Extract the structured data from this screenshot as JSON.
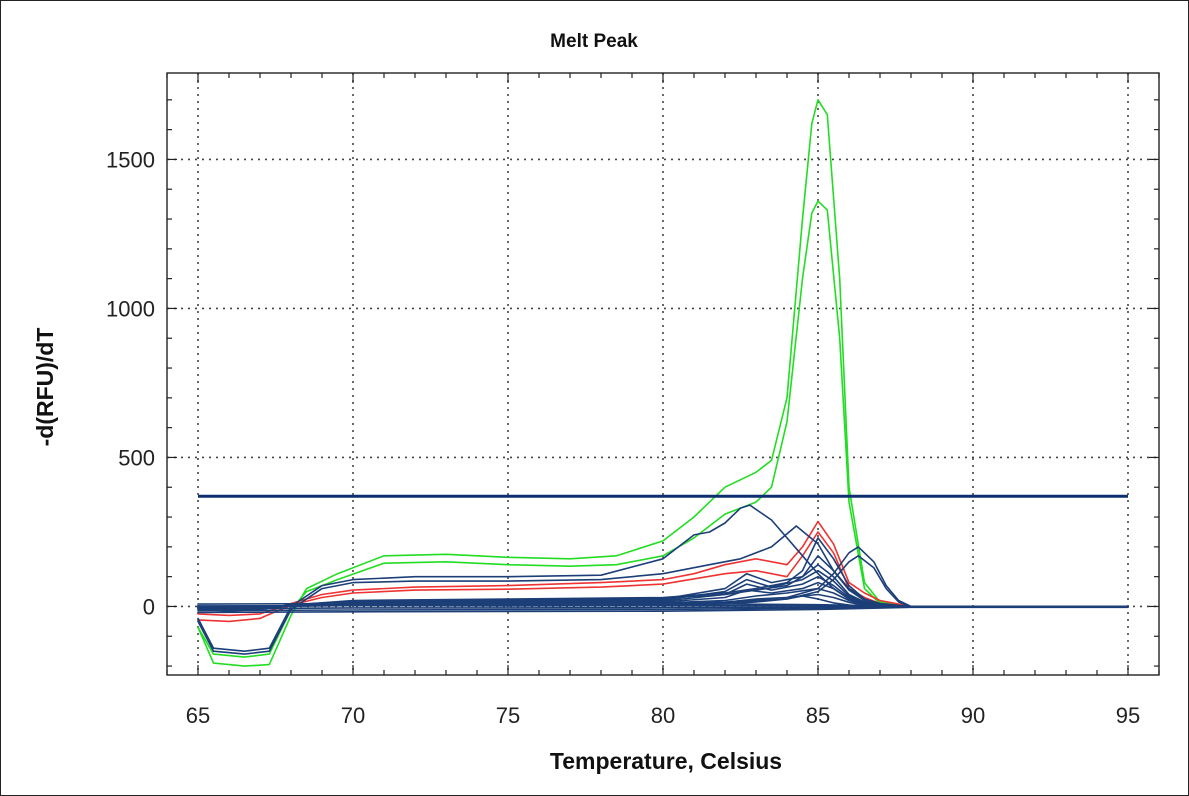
{
  "chart_data": {
    "type": "line",
    "title": "Melt Peak",
    "xlabel": "Temperature, Celsius",
    "ylabel": "-d(RFU)/dT",
    "xlim": [
      64,
      96
    ],
    "ylim": [
      -230,
      1790
    ],
    "x_ticks": [
      "65",
      "70",
      "75",
      "80",
      "85",
      "90",
      "95"
    ],
    "y_ticks": [
      "0",
      "500",
      "1000",
      "1500"
    ],
    "x_tick_values": [
      65,
      70,
      75,
      80,
      85,
      90,
      95
    ],
    "y_tick_values": [
      0,
      500,
      1000,
      1500
    ],
    "grid": true,
    "colors": {
      "green": "#22dd22",
      "red": "#ee3333",
      "blue": "#1c3f78",
      "threshold": "#0d2f70"
    },
    "threshold": 370,
    "series": [
      {
        "color": "green",
        "x": [
          65,
          65.5,
          66.5,
          67.3,
          68,
          68.5,
          69.5,
          71,
          73,
          75,
          77,
          78.5,
          80,
          81,
          82,
          83,
          83.5,
          84,
          84.5,
          84.8,
          85,
          85.3,
          85.7,
          86,
          86.5,
          87,
          88,
          90,
          95
        ],
        "y": [
          -70,
          -190,
          -200,
          -195,
          -30,
          60,
          110,
          170,
          175,
          165,
          160,
          170,
          220,
          300,
          400,
          450,
          490,
          700,
          1300,
          1620,
          1700,
          1650,
          1100,
          400,
          80,
          15,
          0,
          0,
          0
        ]
      },
      {
        "color": "green",
        "x": [
          65,
          65.5,
          66.5,
          67.3,
          68,
          68.5,
          69.5,
          71,
          73,
          75,
          77,
          78.5,
          80,
          81,
          82,
          83,
          83.5,
          84,
          84.5,
          84.8,
          85,
          85.3,
          85.7,
          86,
          86.5,
          87,
          88,
          90,
          95
        ],
        "y": [
          -70,
          -160,
          -170,
          -160,
          -10,
          50,
          90,
          145,
          150,
          140,
          135,
          140,
          170,
          230,
          310,
          350,
          400,
          620,
          1100,
          1320,
          1360,
          1330,
          900,
          350,
          60,
          10,
          0,
          0,
          0
        ]
      },
      {
        "color": "red",
        "x": [
          65,
          66,
          67,
          68,
          69,
          70,
          72,
          75,
          78,
          80,
          81,
          82,
          83,
          84,
          84.5,
          85,
          85.5,
          86,
          86.5,
          87,
          88,
          90,
          95
        ],
        "y": [
          -25,
          -30,
          -25,
          10,
          40,
          55,
          65,
          70,
          80,
          90,
          110,
          140,
          160,
          140,
          200,
          285,
          210,
          80,
          45,
          20,
          0,
          0,
          0
        ]
      },
      {
        "color": "red",
        "x": [
          65,
          66,
          67,
          68,
          69,
          70,
          72,
          75,
          78,
          80,
          82,
          83,
          84,
          84.5,
          85,
          85.5,
          86,
          86.5,
          87,
          88,
          90,
          95
        ],
        "y": [
          -45,
          -50,
          -40,
          5,
          30,
          45,
          55,
          58,
          65,
          75,
          110,
          120,
          100,
          170,
          250,
          180,
          60,
          30,
          10,
          0,
          0,
          0
        ]
      },
      {
        "color": "blue",
        "x": [
          65,
          65.5,
          66.5,
          67.3,
          68,
          69,
          70,
          72,
          75,
          78,
          80,
          81,
          81.5,
          82,
          82.5,
          82.8,
          83.5,
          84,
          84.5,
          85,
          85.5,
          86,
          87,
          88,
          90,
          95
        ],
        "y": [
          -40,
          -140,
          -150,
          -140,
          0,
          70,
          90,
          100,
          100,
          105,
          160,
          240,
          250,
          280,
          330,
          340,
          290,
          230,
          170,
          110,
          60,
          25,
          5,
          0,
          0,
          0
        ]
      },
      {
        "color": "blue",
        "x": [
          65,
          65.5,
          66.5,
          67.3,
          68,
          69,
          70,
          72,
          75,
          78,
          80,
          81.5,
          82.5,
          83.5,
          84.3,
          85,
          85.5,
          86,
          86.5,
          87,
          88,
          90,
          95
        ],
        "y": [
          -50,
          -150,
          -160,
          -150,
          -10,
          60,
          80,
          85,
          85,
          90,
          110,
          140,
          160,
          200,
          270,
          210,
          120,
          60,
          25,
          10,
          0,
          0,
          0
        ]
      },
      {
        "color": "blue",
        "x": [
          65,
          66,
          67,
          68,
          70,
          75,
          80,
          82,
          83,
          84,
          84.5,
          85,
          85.5,
          86,
          86.5,
          87,
          87.5,
          88,
          95
        ],
        "y": [
          -10,
          -15,
          -10,
          5,
          20,
          25,
          30,
          45,
          60,
          80,
          120,
          230,
          160,
          70,
          25,
          8,
          0,
          0,
          0
        ]
      },
      {
        "color": "blue",
        "x": [
          65,
          66,
          67,
          68,
          70,
          75,
          80,
          82,
          83,
          84,
          84.5,
          85,
          85.5,
          86,
          86.5,
          87,
          87.5,
          88,
          95
        ],
        "y": [
          -5,
          -10,
          -8,
          5,
          18,
          22,
          28,
          40,
          55,
          70,
          100,
          170,
          120,
          55,
          20,
          6,
          0,
          0,
          0
        ]
      },
      {
        "color": "blue",
        "x": [
          65,
          67,
          68,
          70,
          75,
          80,
          82,
          82.7,
          83.5,
          84.5,
          85,
          85.5,
          86,
          86.5,
          87,
          88,
          95
        ],
        "y": [
          -5,
          -5,
          5,
          15,
          20,
          25,
          60,
          110,
          80,
          100,
          140,
          100,
          40,
          15,
          5,
          0,
          0
        ]
      },
      {
        "color": "blue",
        "x": [
          65,
          67,
          68,
          70,
          75,
          80,
          82,
          82.7,
          83.5,
          84.5,
          85,
          85.5,
          86,
          86.5,
          87,
          88,
          95
        ],
        "y": [
          -5,
          -5,
          5,
          12,
          18,
          22,
          50,
          90,
          65,
          90,
          120,
          85,
          35,
          12,
          4,
          0,
          0
        ]
      },
      {
        "color": "blue",
        "x": [
          65,
          67,
          68,
          70,
          75,
          80,
          82,
          82.7,
          83.5,
          84.5,
          85,
          85.5,
          86,
          86.5,
          87,
          88,
          95
        ],
        "y": [
          -5,
          -5,
          4,
          10,
          15,
          18,
          40,
          75,
          55,
          75,
          100,
          70,
          30,
          10,
          3,
          0,
          0
        ]
      },
      {
        "color": "blue",
        "x": [
          65,
          67,
          68,
          70,
          75,
          80,
          82,
          82.7,
          83.5,
          84.5,
          85,
          85.5,
          86,
          86.5,
          87,
          88,
          95
        ],
        "y": [
          -5,
          -4,
          3,
          8,
          12,
          15,
          30,
          55,
          45,
          60,
          80,
          60,
          25,
          8,
          3,
          0,
          0
        ]
      },
      {
        "color": "blue",
        "x": [
          65,
          67,
          68,
          70,
          75,
          80,
          82,
          83,
          84,
          85,
          85.5,
          86,
          86.5,
          87,
          88,
          95
        ],
        "y": [
          -4,
          -3,
          3,
          6,
          9,
          12,
          20,
          35,
          45,
          60,
          45,
          20,
          6,
          2,
          0,
          0
        ]
      },
      {
        "color": "blue",
        "x": [
          65,
          67,
          68,
          70,
          75,
          80,
          82,
          83,
          84,
          85,
          85.5,
          86,
          86.5,
          87,
          88,
          95
        ],
        "y": [
          -3,
          -2,
          2,
          4,
          6,
          8,
          14,
          25,
          30,
          40,
          30,
          14,
          4,
          1,
          0,
          0
        ]
      },
      {
        "color": "blue",
        "x": [
          65,
          67,
          68,
          70,
          75,
          80,
          82,
          83,
          84,
          84.5,
          85,
          85.5,
          86,
          86.5,
          87,
          95
        ],
        "y": [
          -2,
          -2,
          1,
          3,
          4,
          5,
          8,
          15,
          25,
          35,
          25,
          12,
          5,
          1,
          0,
          0
        ]
      },
      {
        "color": "blue",
        "x": [
          65,
          67,
          68,
          70,
          75,
          80,
          82,
          84,
          85,
          85.5,
          86,
          86.3,
          86.8,
          87.2,
          87.6,
          88,
          95
        ],
        "y": [
          -5,
          -3,
          2,
          5,
          8,
          10,
          15,
          30,
          60,
          110,
          180,
          200,
          150,
          70,
          20,
          0,
          0
        ]
      },
      {
        "color": "blue",
        "x": [
          65,
          67,
          68,
          70,
          75,
          80,
          82,
          84,
          85,
          85.5,
          86,
          86.3,
          86.8,
          87.2,
          87.6,
          88,
          95
        ],
        "y": [
          -4,
          -3,
          2,
          4,
          6,
          8,
          12,
          25,
          50,
          90,
          150,
          170,
          130,
          60,
          15,
          0,
          0
        ]
      },
      {
        "color": "blue",
        "x": [
          65,
          70,
          75,
          80,
          85,
          88,
          95
        ],
        "y": [
          -8,
          -5,
          -5,
          -4,
          -3,
          0,
          0
        ]
      },
      {
        "color": "blue",
        "x": [
          65,
          70,
          75,
          80,
          85,
          88,
          95
        ],
        "y": [
          -14,
          -12,
          -11,
          -10,
          -6,
          0,
          0
        ]
      },
      {
        "color": "blue",
        "x": [
          65,
          70,
          75,
          80,
          85,
          88,
          95
        ],
        "y": [
          -20,
          -18,
          -17,
          -16,
          -10,
          -3,
          -3
        ]
      },
      {
        "color": "blue",
        "x": [
          65,
          70,
          75,
          80,
          85,
          88,
          95
        ],
        "y": [
          2,
          3,
          2,
          3,
          2,
          0,
          0
        ]
      },
      {
        "color": "blue",
        "x": [
          65,
          70,
          75,
          80,
          85,
          88,
          95
        ],
        "y": [
          8,
          10,
          9,
          10,
          6,
          0,
          0
        ]
      }
    ]
  }
}
